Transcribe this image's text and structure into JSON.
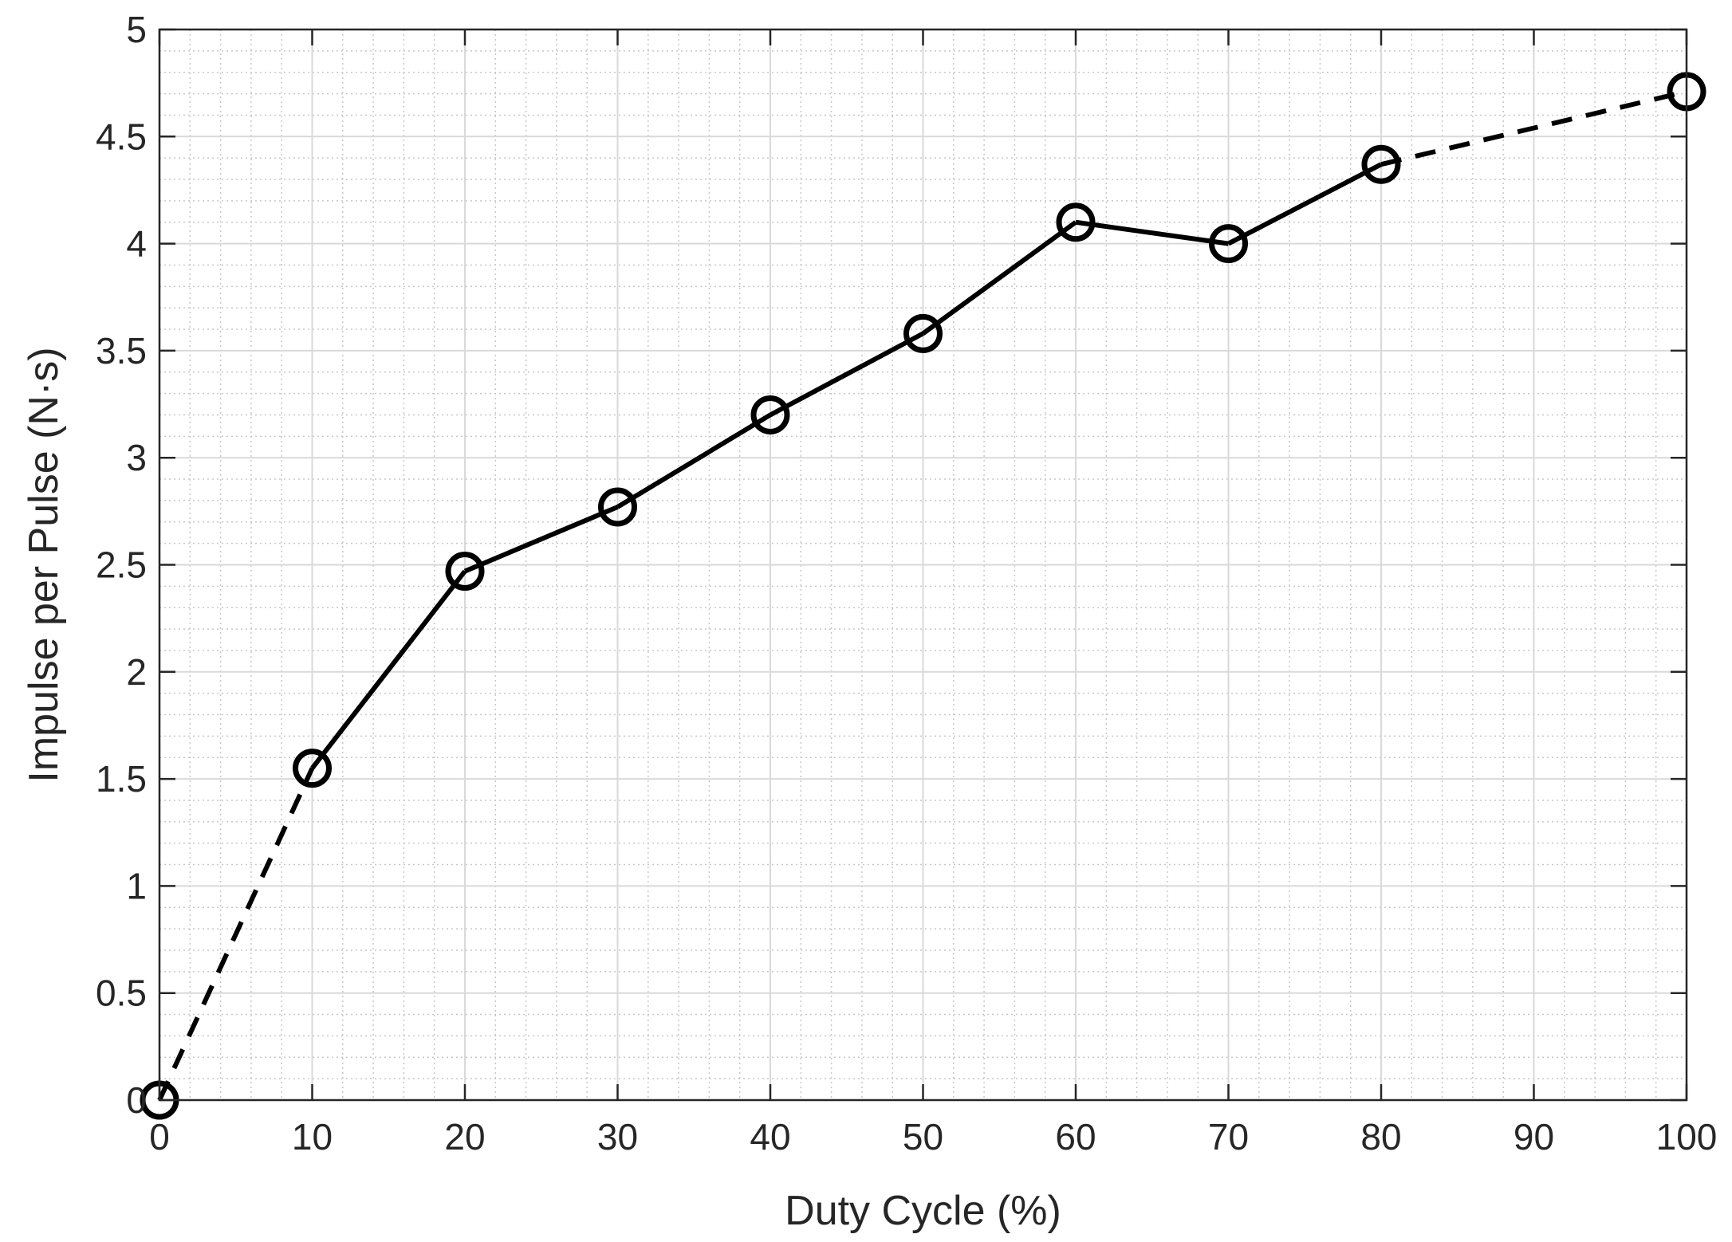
{
  "chart_data": {
    "type": "line",
    "xlabel": "Duty Cycle (%)",
    "ylabel": "Impulse per Pulse (N·s)",
    "xlim": [
      0,
      100
    ],
    "ylim": [
      0,
      5
    ],
    "xticks": [
      0,
      10,
      20,
      30,
      40,
      50,
      60,
      70,
      80,
      90,
      100
    ],
    "yticks": [
      0,
      0.5,
      1,
      1.5,
      2,
      2.5,
      3,
      3.5,
      4,
      4.5,
      5
    ],
    "xtick_labels": [
      "0",
      "10",
      "20",
      "30",
      "40",
      "50",
      "60",
      "70",
      "80",
      "90",
      "100"
    ],
    "ytick_labels": [
      "0",
      "0.5",
      "1",
      "1.5",
      "2",
      "2.5",
      "3",
      "3.5",
      "4",
      "4.5",
      "5"
    ],
    "grid": true,
    "minor_grid": true,
    "series": [
      {
        "x": [
          0,
          10,
          20,
          30,
          40,
          50,
          60,
          70,
          80,
          100
        ],
        "y": [
          0,
          1.55,
          2.47,
          2.77,
          3.2,
          3.58,
          4.1,
          4.0,
          4.37,
          4.71
        ],
        "marker": "circle",
        "color": "#000000",
        "line_styles": [
          "dashed",
          "solid",
          "solid",
          "solid",
          "solid",
          "solid",
          "solid",
          "solid",
          "dashed"
        ]
      }
    ]
  }
}
